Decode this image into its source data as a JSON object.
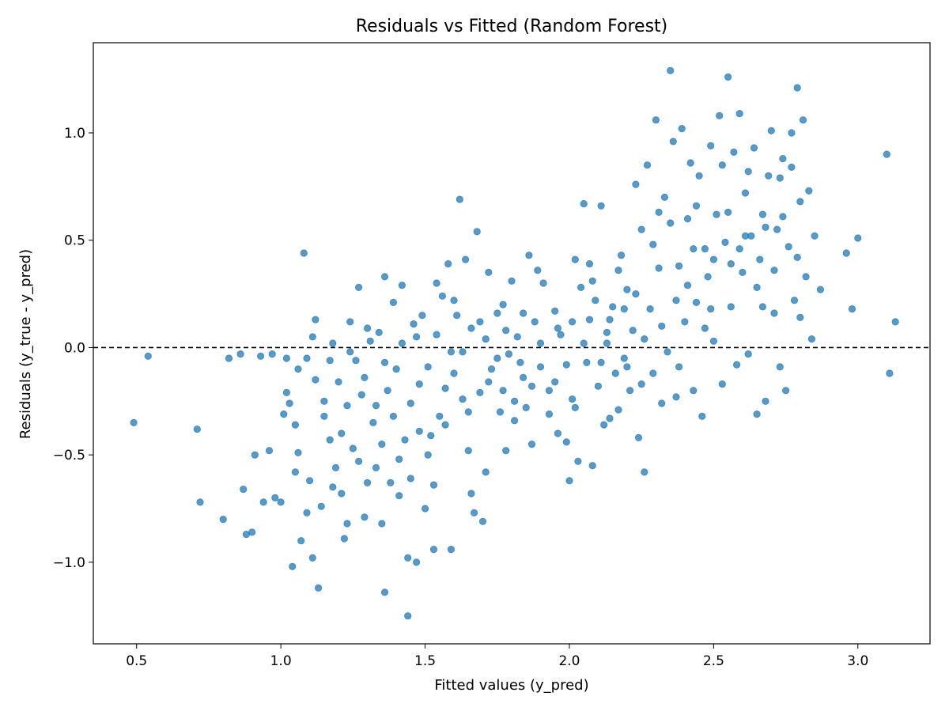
{
  "chart_data": {
    "type": "scatter",
    "title": "Residuals vs Fitted (Random Forest)",
    "xlabel": "Fitted values (y_pred)",
    "ylabel": "Residuals (y_true - y_pred)",
    "xlim": [
      0.35,
      3.25
    ],
    "ylim": [
      -1.38,
      1.42
    ],
    "xticks": [
      0.5,
      1.0,
      1.5,
      2.0,
      2.5,
      3.0
    ],
    "xtick_labels": [
      "0.5",
      "1.0",
      "1.5",
      "2.0",
      "2.5",
      "3.0"
    ],
    "yticks": [
      -1.0,
      -0.5,
      0.0,
      0.5,
      1.0
    ],
    "ytick_labels": [
      "−1.0",
      "−0.5",
      "0.0",
      "0.5",
      "1.0"
    ],
    "reference_line": {
      "y": 0.0,
      "style": "dashed",
      "color": "#000000"
    },
    "grid": false,
    "legend": "none",
    "point_color": "#1f77b4",
    "points": [
      {
        "x": 0.49,
        "y": -0.35
      },
      {
        "x": 0.54,
        "y": -0.04
      },
      {
        "x": 0.71,
        "y": -0.38
      },
      {
        "x": 0.72,
        "y": -0.72
      },
      {
        "x": 0.8,
        "y": -0.8
      },
      {
        "x": 0.82,
        "y": -0.05
      },
      {
        "x": 0.86,
        "y": -0.03
      },
      {
        "x": 0.87,
        "y": -0.66
      },
      {
        "x": 0.88,
        "y": -0.87
      },
      {
        "x": 0.9,
        "y": -0.86
      },
      {
        "x": 0.91,
        "y": -0.5
      },
      {
        "x": 0.93,
        "y": -0.04
      },
      {
        "x": 0.94,
        "y": -0.72
      },
      {
        "x": 0.96,
        "y": -0.48
      },
      {
        "x": 0.97,
        "y": -0.03
      },
      {
        "x": 0.98,
        "y": -0.7
      },
      {
        "x": 1.0,
        "y": -0.72
      },
      {
        "x": 1.01,
        "y": -0.31
      },
      {
        "x": 1.02,
        "y": -0.05
      },
      {
        "x": 1.03,
        "y": -0.26
      },
      {
        "x": 1.04,
        "y": -1.02
      },
      {
        "x": 1.05,
        "y": -0.36
      },
      {
        "x": 1.06,
        "y": -0.49
      },
      {
        "x": 1.07,
        "y": -0.9
      },
      {
        "x": 1.08,
        "y": 0.44
      },
      {
        "x": 1.09,
        "y": -0.05
      },
      {
        "x": 1.1,
        "y": -0.62
      },
      {
        "x": 1.11,
        "y": 0.05
      },
      {
        "x": 1.12,
        "y": 0.13
      },
      {
        "x": 1.13,
        "y": -1.12
      },
      {
        "x": 1.14,
        "y": -0.74
      },
      {
        "x": 1.15,
        "y": -0.25
      },
      {
        "x": 1.17,
        "y": -0.43
      },
      {
        "x": 1.18,
        "y": 0.02
      },
      {
        "x": 1.19,
        "y": -0.56
      },
      {
        "x": 1.2,
        "y": -0.16
      },
      {
        "x": 1.21,
        "y": -0.68
      },
      {
        "x": 1.22,
        "y": -0.89
      },
      {
        "x": 1.23,
        "y": -0.27
      },
      {
        "x": 1.24,
        "y": 0.12
      },
      {
        "x": 1.25,
        "y": -0.47
      },
      {
        "x": 1.26,
        "y": -0.06
      },
      {
        "x": 1.27,
        "y": 0.28
      },
      {
        "x": 1.28,
        "y": -0.22
      },
      {
        "x": 1.29,
        "y": -0.79
      },
      {
        "x": 1.3,
        "y": -0.63
      },
      {
        "x": 1.31,
        "y": 0.03
      },
      {
        "x": 1.32,
        "y": -0.35
      },
      {
        "x": 1.33,
        "y": -0.56
      },
      {
        "x": 1.34,
        "y": 0.07
      },
      {
        "x": 1.35,
        "y": -0.45
      },
      {
        "x": 1.36,
        "y": 0.33
      },
      {
        "x": 1.36,
        "y": -1.14
      },
      {
        "x": 1.37,
        "y": -0.2
      },
      {
        "x": 1.38,
        "y": -0.63
      },
      {
        "x": 1.39,
        "y": 0.21
      },
      {
        "x": 1.4,
        "y": -0.1
      },
      {
        "x": 1.41,
        "y": -0.69
      },
      {
        "x": 1.42,
        "y": 0.29
      },
      {
        "x": 1.43,
        "y": -0.43
      },
      {
        "x": 1.44,
        "y": -1.25
      },
      {
        "x": 1.44,
        "y": -0.98
      },
      {
        "x": 1.45,
        "y": -0.26
      },
      {
        "x": 1.46,
        "y": 0.11
      },
      {
        "x": 1.47,
        "y": -1.0
      },
      {
        "x": 1.48,
        "y": -0.39
      },
      {
        "x": 1.49,
        "y": 0.15
      },
      {
        "x": 1.5,
        "y": -0.75
      },
      {
        "x": 1.51,
        "y": -0.09
      },
      {
        "x": 1.52,
        "y": -0.41
      },
      {
        "x": 1.53,
        "y": -0.94
      },
      {
        "x": 1.54,
        "y": 0.06
      },
      {
        "x": 1.55,
        "y": -0.32
      },
      {
        "x": 1.56,
        "y": 0.24
      },
      {
        "x": 1.57,
        "y": -0.19
      },
      {
        "x": 1.58,
        "y": 0.39
      },
      {
        "x": 1.59,
        "y": -0.94
      },
      {
        "x": 1.6,
        "y": -0.12
      },
      {
        "x": 1.61,
        "y": 0.15
      },
      {
        "x": 1.62,
        "y": 0.69
      },
      {
        "x": 1.63,
        "y": -0.02
      },
      {
        "x": 1.64,
        "y": 0.41
      },
      {
        "x": 1.65,
        "y": -0.48
      },
      {
        "x": 1.66,
        "y": 0.09
      },
      {
        "x": 1.67,
        "y": -0.77
      },
      {
        "x": 1.68,
        "y": 0.54
      },
      {
        "x": 1.69,
        "y": -0.21
      },
      {
        "x": 1.7,
        "y": -0.81
      },
      {
        "x": 1.71,
        "y": 0.04
      },
      {
        "x": 1.72,
        "y": 0.35
      },
      {
        "x": 1.73,
        "y": -0.1
      },
      {
        "x": 1.75,
        "y": 0.16
      },
      {
        "x": 1.76,
        "y": -0.3
      },
      {
        "x": 1.77,
        "y": 0.2
      },
      {
        "x": 1.78,
        "y": -0.48
      },
      {
        "x": 1.79,
        "y": -0.03
      },
      {
        "x": 1.8,
        "y": 0.31
      },
      {
        "x": 1.81,
        "y": -0.25
      },
      {
        "x": 1.82,
        "y": 0.05
      },
      {
        "x": 1.84,
        "y": -0.14
      },
      {
        "x": 1.85,
        "y": -0.28
      },
      {
        "x": 1.86,
        "y": 0.43
      },
      {
        "x": 1.87,
        "y": -0.45
      },
      {
        "x": 1.88,
        "y": 0.12
      },
      {
        "x": 1.9,
        "y": -0.09
      },
      {
        "x": 1.91,
        "y": 0.3
      },
      {
        "x": 1.93,
        "y": -0.2
      },
      {
        "x": 1.95,
        "y": 0.17
      },
      {
        "x": 1.96,
        "y": -0.4
      },
      {
        "x": 1.97,
        "y": 0.06
      },
      {
        "x": 1.99,
        "y": -0.44
      },
      {
        "x": 2.0,
        "y": -0.62
      },
      {
        "x": 2.01,
        "y": 0.12
      },
      {
        "x": 2.02,
        "y": 0.41
      },
      {
        "x": 2.03,
        "y": -0.53
      },
      {
        "x": 2.04,
        "y": 0.28
      },
      {
        "x": 2.05,
        "y": 0.67
      },
      {
        "x": 2.06,
        "y": -0.07
      },
      {
        "x": 2.07,
        "y": 0.39
      },
      {
        "x": 2.08,
        "y": -0.55
      },
      {
        "x": 2.09,
        "y": 0.22
      },
      {
        "x": 2.1,
        "y": -0.18
      },
      {
        "x": 2.11,
        "y": 0.66
      },
      {
        "x": 2.12,
        "y": -0.36
      },
      {
        "x": 2.13,
        "y": 0.07
      },
      {
        "x": 2.14,
        "y": -0.33
      },
      {
        "x": 2.15,
        "y": 0.19
      },
      {
        "x": 2.16,
        "y": -0.12
      },
      {
        "x": 2.17,
        "y": -0.29
      },
      {
        "x": 2.18,
        "y": 0.43
      },
      {
        "x": 2.19,
        "y": -0.05
      },
      {
        "x": 2.2,
        "y": 0.27
      },
      {
        "x": 2.21,
        "y": -0.2
      },
      {
        "x": 2.22,
        "y": 0.08
      },
      {
        "x": 2.23,
        "y": 0.76
      },
      {
        "x": 2.24,
        "y": -0.42
      },
      {
        "x": 2.25,
        "y": 0.55
      },
      {
        "x": 2.26,
        "y": -0.58
      },
      {
        "x": 2.27,
        "y": 0.85
      },
      {
        "x": 2.28,
        "y": 0.18
      },
      {
        "x": 2.29,
        "y": -0.12
      },
      {
        "x": 2.3,
        "y": 1.06
      },
      {
        "x": 2.31,
        "y": 0.37
      },
      {
        "x": 2.32,
        "y": -0.26
      },
      {
        "x": 2.33,
        "y": 0.7
      },
      {
        "x": 2.34,
        "y": -0.02
      },
      {
        "x": 2.35,
        "y": 1.29
      },
      {
        "x": 2.36,
        "y": 0.96
      },
      {
        "x": 2.37,
        "y": -0.23
      },
      {
        "x": 2.38,
        "y": 0.38
      },
      {
        "x": 2.39,
        "y": 1.02
      },
      {
        "x": 2.4,
        "y": 0.12
      },
      {
        "x": 2.41,
        "y": 0.6
      },
      {
        "x": 2.42,
        "y": 0.86
      },
      {
        "x": 2.43,
        "y": -0.2
      },
      {
        "x": 2.44,
        "y": 0.21
      },
      {
        "x": 2.45,
        "y": 0.8
      },
      {
        "x": 2.46,
        "y": -0.32
      },
      {
        "x": 2.47,
        "y": 0.46
      },
      {
        "x": 2.48,
        "y": 0.33
      },
      {
        "x": 2.49,
        "y": 0.94
      },
      {
        "x": 2.5,
        "y": 0.03
      },
      {
        "x": 2.51,
        "y": 0.62
      },
      {
        "x": 2.52,
        "y": 1.08
      },
      {
        "x": 2.53,
        "y": -0.17
      },
      {
        "x": 2.54,
        "y": 0.49
      },
      {
        "x": 2.55,
        "y": 1.26
      },
      {
        "x": 2.56,
        "y": 0.39
      },
      {
        "x": 2.57,
        "y": 0.91
      },
      {
        "x": 2.58,
        "y": -0.08
      },
      {
        "x": 2.59,
        "y": 1.09
      },
      {
        "x": 2.6,
        "y": 0.35
      },
      {
        "x": 2.61,
        "y": 0.72
      },
      {
        "x": 2.62,
        "y": -0.03
      },
      {
        "x": 2.63,
        "y": 0.52
      },
      {
        "x": 2.64,
        "y": 0.93
      },
      {
        "x": 2.65,
        "y": -0.31
      },
      {
        "x": 2.66,
        "y": 0.41
      },
      {
        "x": 2.67,
        "y": 0.62
      },
      {
        "x": 2.68,
        "y": -0.25
      },
      {
        "x": 2.69,
        "y": 0.8
      },
      {
        "x": 2.7,
        "y": 1.01
      },
      {
        "x": 2.71,
        "y": 0.16
      },
      {
        "x": 2.72,
        "y": 0.55
      },
      {
        "x": 2.73,
        "y": -0.09
      },
      {
        "x": 2.74,
        "y": 0.88
      },
      {
        "x": 2.75,
        "y": -0.2
      },
      {
        "x": 2.76,
        "y": 0.47
      },
      {
        "x": 2.77,
        "y": 1.0
      },
      {
        "x": 2.78,
        "y": 0.22
      },
      {
        "x": 2.79,
        "y": 1.21
      },
      {
        "x": 2.8,
        "y": 0.68
      },
      {
        "x": 2.81,
        "y": 1.06
      },
      {
        "x": 2.82,
        "y": 0.33
      },
      {
        "x": 2.83,
        "y": 0.73
      },
      {
        "x": 2.84,
        "y": 0.04
      },
      {
        "x": 2.85,
        "y": 0.52
      },
      {
        "x": 2.87,
        "y": 0.27
      },
      {
        "x": 2.96,
        "y": 0.44
      },
      {
        "x": 2.98,
        "y": 0.18
      },
      {
        "x": 3.0,
        "y": 0.51
      },
      {
        "x": 3.1,
        "y": 0.9
      },
      {
        "x": 3.11,
        "y": -0.12
      },
      {
        "x": 3.13,
        "y": 0.12
      },
      {
        "x": 1.02,
        "y": -0.21
      },
      {
        "x": 1.06,
        "y": -0.1
      },
      {
        "x": 1.09,
        "y": -0.77
      },
      {
        "x": 1.12,
        "y": -0.15
      },
      {
        "x": 1.15,
        "y": -0.32
      },
      {
        "x": 1.18,
        "y": -0.65
      },
      {
        "x": 1.21,
        "y": -0.4
      },
      {
        "x": 1.24,
        "y": -0.02
      },
      {
        "x": 1.27,
        "y": -0.53
      },
      {
        "x": 1.3,
        "y": 0.09
      },
      {
        "x": 1.33,
        "y": -0.27
      },
      {
        "x": 1.36,
        "y": -0.07
      },
      {
        "x": 1.39,
        "y": -0.32
      },
      {
        "x": 1.42,
        "y": 0.02
      },
      {
        "x": 1.45,
        "y": -0.61
      },
      {
        "x": 1.48,
        "y": -0.17
      },
      {
        "x": 1.51,
        "y": -0.5
      },
      {
        "x": 1.54,
        "y": 0.3
      },
      {
        "x": 1.57,
        "y": -0.36
      },
      {
        "x": 1.6,
        "y": 0.22
      },
      {
        "x": 1.63,
        "y": -0.24
      },
      {
        "x": 1.66,
        "y": -0.68
      },
      {
        "x": 1.69,
        "y": 0.12
      },
      {
        "x": 1.72,
        "y": -0.16
      },
      {
        "x": 1.75,
        "y": -0.05
      },
      {
        "x": 1.78,
        "y": 0.08
      },
      {
        "x": 1.81,
        "y": -0.34
      },
      {
        "x": 1.84,
        "y": 0.16
      },
      {
        "x": 1.87,
        "y": -0.18
      },
      {
        "x": 1.9,
        "y": 0.02
      },
      {
        "x": 1.93,
        "y": -0.31
      },
      {
        "x": 1.96,
        "y": 0.09
      },
      {
        "x": 1.99,
        "y": -0.08
      },
      {
        "x": 2.02,
        "y": -0.28
      },
      {
        "x": 2.05,
        "y": 0.02
      },
      {
        "x": 2.08,
        "y": 0.31
      },
      {
        "x": 2.11,
        "y": -0.07
      },
      {
        "x": 2.14,
        "y": 0.13
      },
      {
        "x": 2.17,
        "y": 0.36
      },
      {
        "x": 2.2,
        "y": -0.09
      },
      {
        "x": 2.23,
        "y": 0.25
      },
      {
        "x": 2.26,
        "y": 0.04
      },
      {
        "x": 2.29,
        "y": 0.48
      },
      {
        "x": 2.32,
        "y": 0.1
      },
      {
        "x": 2.35,
        "y": 0.58
      },
      {
        "x": 2.38,
        "y": -0.09
      },
      {
        "x": 2.41,
        "y": 0.29
      },
      {
        "x": 2.44,
        "y": 0.66
      },
      {
        "x": 2.47,
        "y": 0.09
      },
      {
        "x": 2.5,
        "y": 0.41
      },
      {
        "x": 2.53,
        "y": 0.85
      },
      {
        "x": 2.56,
        "y": 0.19
      },
      {
        "x": 2.59,
        "y": 0.46
      },
      {
        "x": 2.62,
        "y": 0.82
      },
      {
        "x": 2.65,
        "y": 0.28
      },
      {
        "x": 2.68,
        "y": 0.56
      },
      {
        "x": 2.71,
        "y": 0.36
      },
      {
        "x": 2.74,
        "y": 0.61
      },
      {
        "x": 2.77,
        "y": 0.84
      },
      {
        "x": 2.8,
        "y": 0.14
      },
      {
        "x": 1.05,
        "y": -0.58
      },
      {
        "x": 1.11,
        "y": -0.98
      },
      {
        "x": 1.17,
        "y": -0.06
      },
      {
        "x": 1.23,
        "y": -0.82
      },
      {
        "x": 1.29,
        "y": -0.14
      },
      {
        "x": 1.35,
        "y": -0.82
      },
      {
        "x": 1.41,
        "y": -0.52
      },
      {
        "x": 1.47,
        "y": 0.05
      },
      {
        "x": 1.53,
        "y": -0.64
      },
      {
        "x": 1.59,
        "y": -0.02
      },
      {
        "x": 1.65,
        "y": -0.3
      },
      {
        "x": 1.71,
        "y": -0.58
      },
      {
        "x": 1.77,
        "y": -0.2
      },
      {
        "x": 1.83,
        "y": -0.07
      },
      {
        "x": 1.89,
        "y": 0.36
      },
      {
        "x": 1.95,
        "y": -0.16
      },
      {
        "x": 2.01,
        "y": -0.24
      },
      {
        "x": 2.07,
        "y": 0.13
      },
      {
        "x": 2.13,
        "y": 0.02
      },
      {
        "x": 2.19,
        "y": 0.18
      },
      {
        "x": 2.25,
        "y": -0.17
      },
      {
        "x": 2.31,
        "y": 0.63
      },
      {
        "x": 2.37,
        "y": 0.22
      },
      {
        "x": 2.43,
        "y": 0.46
      },
      {
        "x": 2.49,
        "y": 0.18
      },
      {
        "x": 2.55,
        "y": 0.63
      },
      {
        "x": 2.61,
        "y": 0.52
      },
      {
        "x": 2.67,
        "y": 0.19
      },
      {
        "x": 2.73,
        "y": 0.79
      },
      {
        "x": 2.79,
        "y": 0.42
      }
    ]
  }
}
